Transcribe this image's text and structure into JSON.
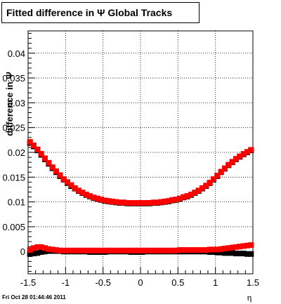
{
  "title": "Fitted difference in  Ψ   Global Tracks",
  "footer": "Fri Oct 28 01:44:46 2011",
  "chart_data": {
    "type": "scatter",
    "title": "Fitted difference in  Ψ   Global Tracks",
    "xlabel": "η",
    "ylabel": "difference in Ψ",
    "xlim": [
      -1.5,
      1.5
    ],
    "ylim": [
      -0.0045,
      0.0445
    ],
    "grid": true,
    "xticks": [
      -1.5,
      -1,
      -0.5,
      0,
      0.5,
      1,
      1.5
    ],
    "xtick_labels": [
      "-1.5",
      "-1",
      "-0.5",
      "0",
      "0.5",
      "1",
      "1.5"
    ],
    "yticks": [
      0,
      0.005,
      0.01,
      0.015,
      0.02,
      0.025,
      0.03,
      0.035,
      0.04
    ],
    "ytick_labels": [
      "0",
      "0.005",
      "0.01",
      "0.015",
      "0.02",
      "0.025",
      "0.03",
      "0.035",
      "0.04"
    ],
    "series": [
      {
        "color": "#000000",
        "marker": "square",
        "x": [
          -1.475,
          -1.425,
          -1.375,
          -1.325,
          -1.275,
          -1.225,
          -1.175,
          -1.125,
          -1.075,
          -1.025,
          -0.975,
          -0.925,
          -0.875,
          -0.825,
          -0.775,
          -0.725,
          -0.675,
          -0.625,
          -0.575,
          -0.525,
          -0.475,
          -0.425,
          -0.375,
          -0.325,
          -0.275,
          -0.225,
          -0.175,
          -0.125,
          -0.075,
          -0.025,
          0.025,
          0.075,
          0.125,
          0.175,
          0.225,
          0.275,
          0.325,
          0.375,
          0.425,
          0.475,
          0.525,
          0.575,
          0.625,
          0.675,
          0.725,
          0.775,
          0.825,
          0.875,
          0.925,
          0.975,
          1.025,
          1.075,
          1.125,
          1.175,
          1.225,
          1.275,
          1.325,
          1.375,
          1.425,
          1.475
        ],
        "y": [
          0.0219,
          0.0212,
          0.0204,
          0.0195,
          0.0186,
          0.0177,
          0.0168,
          0.016,
          0.0152,
          0.0145,
          0.0138,
          0.0132,
          0.0127,
          0.0122,
          0.0118,
          0.0114,
          0.0111,
          0.0108,
          0.0106,
          0.0104,
          0.0102,
          0.0101,
          0.01,
          0.0099,
          0.0098,
          0.0098,
          0.0097,
          0.0097,
          0.0097,
          0.0097,
          0.0097,
          0.0097,
          0.0097,
          0.0098,
          0.0098,
          0.0099,
          0.01,
          0.0101,
          0.0103,
          0.0104,
          0.0106,
          0.0109,
          0.0111,
          0.0114,
          0.0118,
          0.0122,
          0.0127,
          0.0132,
          0.0138,
          0.0145,
          0.0152,
          0.016,
          0.0167,
          0.0174,
          0.018,
          0.0186,
          0.0191,
          0.0196,
          0.02,
          0.0204
        ]
      },
      {
        "color": "#ff0000",
        "marker": "square",
        "x": [
          -1.475,
          -1.425,
          -1.375,
          -1.325,
          -1.275,
          -1.225,
          -1.175,
          -1.125,
          -1.075,
          -1.025,
          -0.975,
          -0.925,
          -0.875,
          -0.825,
          -0.775,
          -0.725,
          -0.675,
          -0.625,
          -0.575,
          -0.525,
          -0.475,
          -0.425,
          -0.375,
          -0.325,
          -0.275,
          -0.225,
          -0.175,
          -0.125,
          -0.075,
          -0.025,
          0.025,
          0.075,
          0.125,
          0.175,
          0.225,
          0.275,
          0.325,
          0.375,
          0.425,
          0.475,
          0.525,
          0.575,
          0.625,
          0.675,
          0.725,
          0.775,
          0.825,
          0.875,
          0.925,
          0.975,
          1.025,
          1.075,
          1.125,
          1.175,
          1.225,
          1.275,
          1.325,
          1.375,
          1.425,
          1.475
        ],
        "y": [
          0.0221,
          0.0214,
          0.0206,
          0.0197,
          0.0188,
          0.0179,
          0.017,
          0.0162,
          0.0154,
          0.0146,
          0.014,
          0.0134,
          0.0128,
          0.0123,
          0.0119,
          0.0115,
          0.0112,
          0.0109,
          0.0107,
          0.0105,
          0.0103,
          0.0102,
          0.0101,
          0.01,
          0.0099,
          0.0099,
          0.0098,
          0.0098,
          0.0098,
          0.0098,
          0.0098,
          0.0098,
          0.0098,
          0.0099,
          0.0099,
          0.01,
          0.0101,
          0.0102,
          0.0104,
          0.0105,
          0.0107,
          0.011,
          0.0112,
          0.0115,
          0.0119,
          0.0123,
          0.0128,
          0.0133,
          0.0139,
          0.0146,
          0.0153,
          0.0161,
          0.0168,
          0.0175,
          0.0181,
          0.0187,
          0.0192,
          0.0197,
          0.0201,
          0.0205
        ]
      },
      {
        "color": "#000000",
        "marker": "square",
        "x": [
          -1.475,
          -1.425,
          -1.375,
          -1.325,
          -1.275,
          -1.225,
          -1.175,
          -1.125,
          -1.075,
          -1.025,
          -0.975,
          -0.925,
          -0.875,
          -0.825,
          -0.775,
          -0.725,
          -0.675,
          -0.625,
          -0.575,
          -0.525,
          -0.475,
          -0.425,
          -0.375,
          -0.325,
          -0.275,
          -0.225,
          -0.175,
          -0.125,
          -0.075,
          -0.025,
          0.025,
          0.075,
          0.125,
          0.175,
          0.225,
          0.275,
          0.325,
          0.375,
          0.425,
          0.475,
          0.525,
          0.575,
          0.625,
          0.675,
          0.725,
          0.775,
          0.825,
          0.875,
          0.925,
          0.975,
          1.025,
          1.075,
          1.125,
          1.175,
          1.225,
          1.275,
          1.325,
          1.375,
          1.425,
          1.475
        ],
        "y": [
          -0.0005,
          -0.0004,
          -0.0003,
          -0.0001,
          0.0,
          0.0001,
          0.0001,
          0.0001,
          0.0001,
          0.0,
          0.0,
          0.0,
          0.0,
          0.0,
          0.0,
          0.0,
          -0.0001,
          -0.0001,
          -0.0001,
          -0.0001,
          -0.0001,
          0.0,
          0.0,
          0.0,
          0.0,
          0.0,
          0.0,
          -0.0001,
          -0.0001,
          -0.0001,
          -0.0001,
          0.0,
          0.0,
          0.0,
          0.0,
          0.0,
          0.0,
          0.0,
          0.0,
          0.0,
          0.0,
          0.0,
          0.0,
          0.0,
          0.0,
          0.0,
          0.0,
          0.0,
          -0.0001,
          -0.0001,
          -0.0002,
          -0.0002,
          -0.0003,
          -0.0003,
          -0.0003,
          -0.0004,
          -0.0004,
          -0.0004,
          -0.0005,
          -0.0005
        ]
      },
      {
        "color": "#ff0000",
        "marker": "square",
        "x": [
          -1.475,
          -1.425,
          -1.375,
          -1.325,
          -1.275,
          -1.225,
          -1.175,
          -1.125,
          -1.075,
          -1.025,
          -0.975,
          -0.925,
          -0.875,
          -0.825,
          -0.775,
          -0.725,
          -0.675,
          -0.625,
          -0.575,
          -0.525,
          -0.475,
          -0.425,
          -0.375,
          -0.325,
          -0.275,
          -0.225,
          -0.175,
          -0.125,
          -0.075,
          -0.025,
          0.025,
          0.075,
          0.125,
          0.175,
          0.225,
          0.275,
          0.325,
          0.375,
          0.425,
          0.475,
          0.525,
          0.575,
          0.625,
          0.675,
          0.725,
          0.775,
          0.825,
          0.875,
          0.925,
          0.975,
          1.025,
          1.075,
          1.125,
          1.175,
          1.225,
          1.275,
          1.325,
          1.375,
          1.425,
          1.475
        ],
        "y": [
          0.0003,
          0.0007,
          0.0009,
          0.0009,
          0.0007,
          0.0005,
          0.0004,
          0.0003,
          0.0002,
          0.0002,
          0.0002,
          0.0002,
          0.0002,
          0.0002,
          0.0002,
          0.0002,
          0.0002,
          0.0002,
          0.0002,
          0.0002,
          0.0002,
          0.0002,
          0.0002,
          0.0002,
          0.0002,
          0.0002,
          0.0002,
          0.0002,
          0.0002,
          0.0002,
          0.0002,
          0.0002,
          0.0002,
          0.0002,
          0.0002,
          0.0002,
          0.0002,
          0.0002,
          0.0002,
          0.0002,
          0.0003,
          0.0003,
          0.0003,
          0.0003,
          0.0003,
          0.0003,
          0.0003,
          0.0003,
          0.0004,
          0.0004,
          0.0004,
          0.0005,
          0.0006,
          0.0007,
          0.0008,
          0.0009,
          0.001,
          0.0011,
          0.0012,
          0.0013
        ]
      }
    ]
  }
}
